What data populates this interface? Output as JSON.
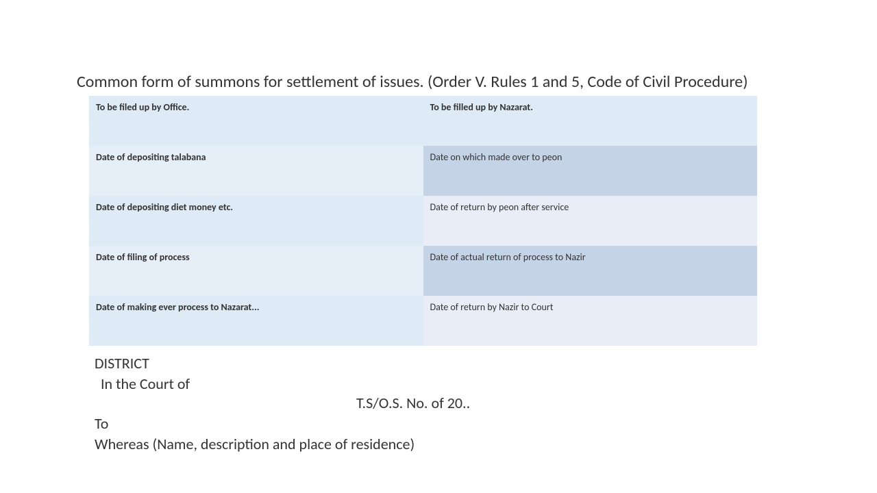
{
  "title": "Common form of summons for settlement of issues. (Order V. Rules 1 and 5, Code of Civil Procedure)",
  "table": {
    "row1": {
      "left": "To be filed up by Office.",
      "right": "To be filled up by Nazarat."
    },
    "row2": {
      "left": "Date of depositing talabana",
      "right": "Date on which made over to peon"
    },
    "row3": {
      "left": "Date of depositing diet money etc.",
      "right": "Date of return by peon after service"
    },
    "row4": {
      "left": "Date of filing of process",
      "right": "Date of actual return of process to Nazir"
    },
    "row5": {
      "left": "Date of making ever process to Nazarat...",
      "right": "Date of return by Nazir to Court"
    }
  },
  "district": "DISTRICT",
  "court": "In the Court of",
  "case_no": "T.S/O.S. No.        of 20..",
  "to": "To",
  "whereas": "Whereas (Name, description and place of residence)",
  "colors": {
    "light_blue_1": "#deebf7",
    "light_blue_2": "#e6eef8",
    "med_blue": "#c5d3e6",
    "pale_blue": "#e9edf7",
    "text": "#333333",
    "bg": "#ffffff"
  },
  "fontsize": {
    "title": 24,
    "table": 14,
    "below": 22
  }
}
